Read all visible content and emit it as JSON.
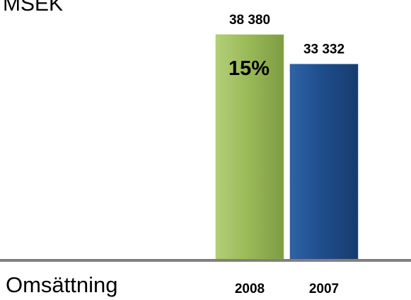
{
  "chart_data": {
    "type": "bar",
    "unit_label": "MSEK",
    "metric_label": "Omsättning",
    "categories": [
      "2008",
      "2007"
    ],
    "values": [
      38380,
      33332
    ],
    "value_labels": [
      "38 380",
      "33 332"
    ],
    "annotation": "15%",
    "colors": [
      "#9bbb59",
      "#1f4e8c"
    ],
    "baseline_color": "#808080",
    "grid": false
  }
}
